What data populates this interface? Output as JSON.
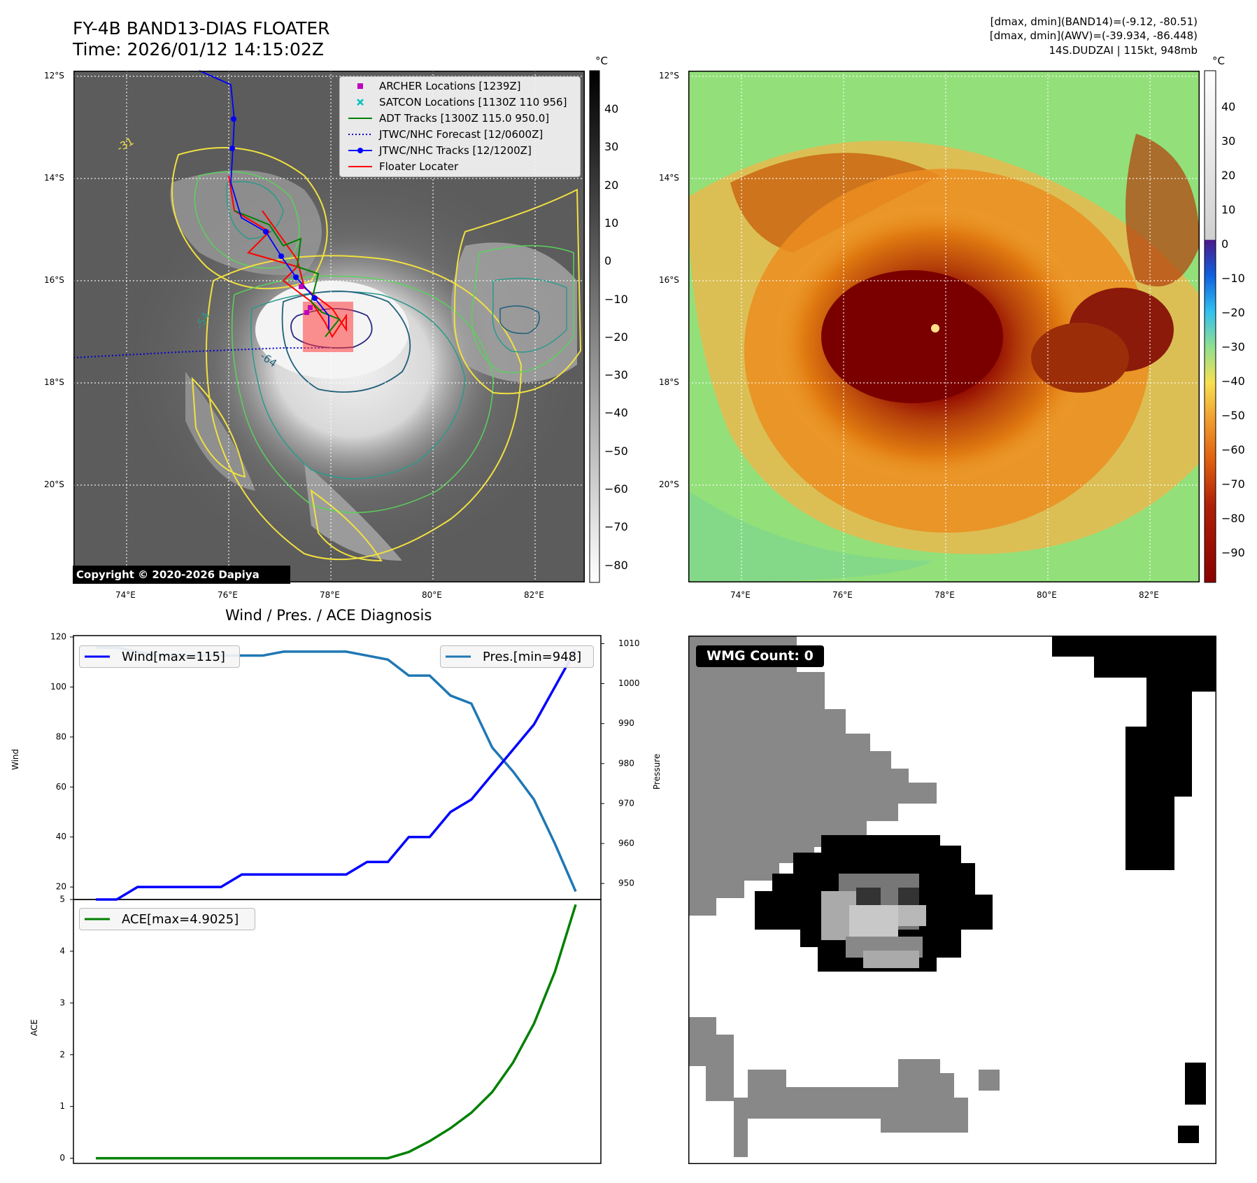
{
  "header": {
    "title": "FY-4B BAND13-DIAS FLOATER",
    "time": "Time: 2026/01/12 14:15:02Z",
    "info_band14": "[dmax, dmin](BAND14)=(-9.12, -80.51)",
    "info_awv": "[dmax, dmin](AWV)=(-39.934, -86.448)",
    "storm": "14S.DUDZAI | 115kt, 948mb"
  },
  "map": {
    "lat_labels": [
      "12°S",
      "14°S",
      "16°S",
      "18°S",
      "20°S"
    ],
    "lon_labels": [
      "74°E",
      "76°E",
      "78°E",
      "80°E",
      "82°E"
    ],
    "copyright": "Copyright © 2020-2026 Dapiya",
    "contour_labels": [
      "-31",
      "-54",
      "-64"
    ]
  },
  "colorbar_gray": {
    "unit": "°C",
    "ticks": [
      "40",
      "30",
      "20",
      "10",
      "0",
      "−10",
      "−20",
      "−30",
      "−40",
      "−50",
      "−60",
      "−70",
      "−80"
    ]
  },
  "colorbar_color": {
    "unit": "°C",
    "ticks": [
      "40",
      "30",
      "20",
      "10",
      "0",
      "−10",
      "−20",
      "−30",
      "−40",
      "−50",
      "−60",
      "−70",
      "−80",
      "−90"
    ]
  },
  "legend": [
    {
      "label": "ARCHER Locations [1239Z]",
      "color": "#bf00bf",
      "kind": "square"
    },
    {
      "label": "SATCON Locations [1130Z 110 956]",
      "color": "#00bfbf",
      "kind": "x"
    },
    {
      "label": "ADT Tracks [1300Z 115.0 950.0]",
      "color": "#008000",
      "kind": "line"
    },
    {
      "label": "JTWC/NHC Forecast [12/0600Z]",
      "color": "#0000cc",
      "kind": "dotted"
    },
    {
      "label": "JTWC/NHC Tracks [12/1200Z]",
      "color": "#0000ff",
      "kind": "marker"
    },
    {
      "label": "Floater Locater",
      "color": "#ff0000",
      "kind": "line"
    }
  ],
  "wmg": {
    "label": "WMG Count: 0"
  },
  "chart_data": [
    {
      "type": "line",
      "title": "Wind / Pres. / ACE Diagnosis",
      "ylabel": "Wind",
      "y2label": "Pressure",
      "ylim": [
        15,
        120
      ],
      "y2lim": [
        946,
        1012
      ],
      "yticks": [
        20,
        40,
        60,
        80,
        100,
        120
      ],
      "y2ticks": [
        950,
        960,
        970,
        980,
        990,
        1000,
        1010
      ],
      "series": [
        {
          "name": "Wind[max=115]",
          "color": "#0000ff",
          "axis": "left",
          "values": [
            15,
            15,
            20,
            20,
            20,
            20,
            20,
            25,
            25,
            25,
            25,
            25,
            25,
            30,
            30,
            40,
            40,
            50,
            55,
            65,
            75,
            85,
            100,
            115
          ]
        },
        {
          "name": "Pres.[min=948]",
          "color": "#1f77b4",
          "axis": "right",
          "values": [
            1009,
            1009,
            1008,
            1007,
            1007,
            1007,
            1007,
            1007,
            1007,
            1008,
            1008,
            1008,
            1008,
            1007,
            1006,
            1002,
            1002,
            997,
            995,
            984,
            978,
            971,
            960,
            948
          ]
        }
      ]
    },
    {
      "type": "line",
      "ylabel": "ACE",
      "ylim": [
        -0.1,
        5.0
      ],
      "yticks": [
        0,
        1,
        2,
        3,
        4,
        5
      ],
      "series": [
        {
          "name": "ACE[max=4.9025]",
          "color": "#008000",
          "values": [
            0,
            0,
            0,
            0,
            0,
            0,
            0,
            0,
            0,
            0,
            0,
            0,
            0,
            0,
            0,
            0.12,
            0.33,
            0.58,
            0.88,
            1.28,
            1.85,
            2.6,
            3.6,
            4.9025
          ]
        }
      ]
    }
  ]
}
